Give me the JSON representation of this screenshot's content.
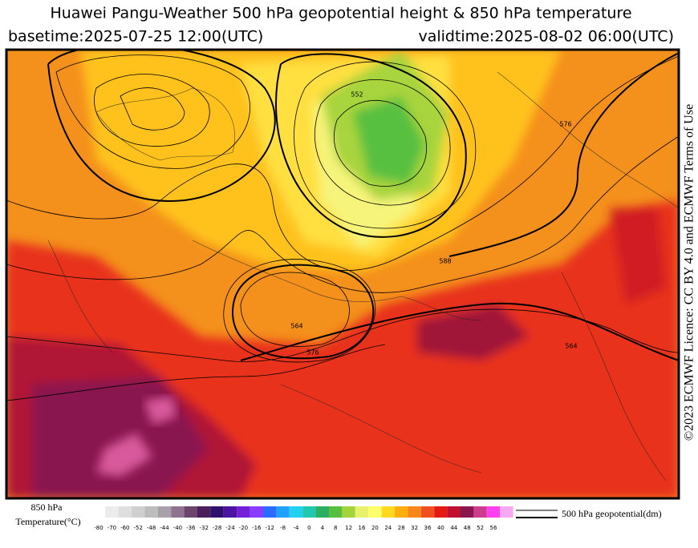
{
  "header": {
    "title": "Huawei Pangu-Weather 500 hPa geopotential height & 850 hPa temperature",
    "basetime": "basetime:2025-07-25 12:00(UTC)",
    "validtime": "validtime:2025-08-02 06:00(UTC)"
  },
  "credit": "©2023 ECMWF Licence: CC BY 4.0 and ECMWF Terms of Use",
  "map": {
    "contour_labels": [
      "552",
      "576",
      "564",
      "588",
      "576",
      "564"
    ]
  },
  "legend": {
    "temperature_label": [
      "850 hPa",
      "Temperature(°C)"
    ],
    "ticks": [
      -80,
      -70,
      -60,
      -52,
      -48,
      -44,
      -40,
      -36,
      -32,
      -28,
      -24,
      -20,
      -16,
      -12,
      -8,
      -4,
      0,
      4,
      8,
      12,
      16,
      20,
      24,
      28,
      32,
      36,
      40,
      44,
      48,
      52,
      56
    ],
    "colors": [
      "#ececec",
      "#dedede",
      "#cfcfcf",
      "#bdbdbd",
      "#a9a0a9",
      "#8f748f",
      "#6b456b",
      "#4a1f5c",
      "#30106e",
      "#4c14a4",
      "#7420d8",
      "#8a3cff",
      "#2b6cff",
      "#1fa2ff",
      "#22d0f0",
      "#20c8b0",
      "#2ab060",
      "#58c040",
      "#a4d43c",
      "#e6f26a",
      "#ffff6a",
      "#ffd820",
      "#ffae10",
      "#f8861a",
      "#f05020",
      "#e61a14",
      "#c01030",
      "#8a1650",
      "#d03c8c",
      "#ff40f0",
      "#f8a8f0"
    ],
    "contour_label": "500 hPa geopotential(dm)"
  }
}
